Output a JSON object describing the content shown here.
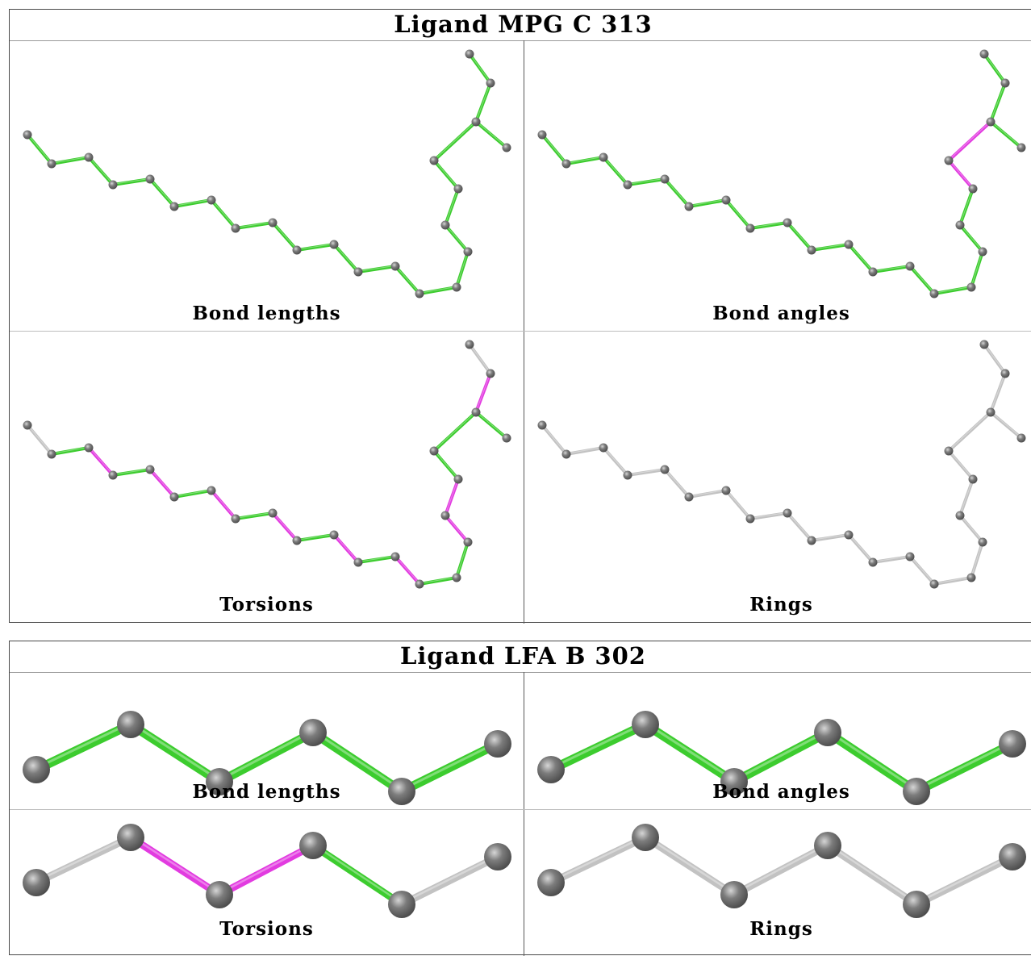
{
  "colors": {
    "green": "#3ccc2e",
    "magenta": "#e23be0",
    "grey_bond": "#c2c2c2",
    "atom": "#7c7c7c"
  },
  "panels": [
    {
      "title": "Ligand MPG C 313",
      "captions": [
        "Bond lengths",
        "Bond angles",
        "Torsions",
        "Rings"
      ]
    },
    {
      "title": "Ligand LFA B 302",
      "captions": [
        "Bond lengths",
        "Bond angles",
        "Torsions",
        "Rings"
      ]
    }
  ]
}
